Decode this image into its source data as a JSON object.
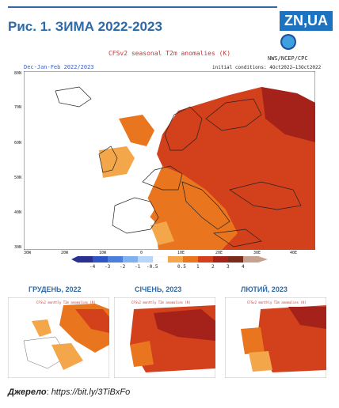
{
  "title": "Рис. 1. ЗИМА 2022-2023",
  "logo": "ZN,UA",
  "figure": {
    "heading": "CFSv2 seasonal T2m anomalies (K)",
    "agency": "NWS/NCEP/CPC",
    "period": "Dec-Jan-Feb 2022/2023",
    "initial_conditions": "initial conditions: 4Oct2022–13Oct2022",
    "lat_labels": [
      "80N",
      "70N",
      "60N",
      "50N",
      "40N",
      "30N"
    ],
    "lon_labels": [
      "30W",
      "20W",
      "10W",
      "0",
      "10E",
      "20E",
      "30E",
      "40E"
    ],
    "colorbar_ticks": [
      "-4",
      "-3",
      "-2",
      "-1",
      "-0.5",
      "0.5",
      "1",
      "2",
      "3",
      "4"
    ],
    "colorbar_colors": [
      "#2b2f8f",
      "#2f55c4",
      "#4a7fdc",
      "#7fb0ef",
      "#b8d6f7",
      "#ffffff",
      "#f3a64a",
      "#e9751f",
      "#d2401c",
      "#a5221a",
      "#7a2a1a",
      "#c8a290"
    ]
  },
  "months": [
    {
      "label": "ГРУДЕНЬ, 2022",
      "caption": "CFSv2 monthly T2m anomalies (K)"
    },
    {
      "label": "СІЧЕНЬ, 2023",
      "caption": "CFSv2 monthly T2m anomalies (K)"
    },
    {
      "label": "ЛЮТИЙ, 2023",
      "caption": "CFSv2 monthly T2m anomalies (K)"
    }
  ],
  "source": {
    "label": "Джерело",
    "url": "https://bit.ly/3TiBxFo"
  },
  "colors": {
    "accent": "#2f6aa8",
    "logo_bg": "#1e73c0",
    "anomaly_hot": "#d2401c",
    "anomaly_warm": "#e9751f",
    "anomaly_mild": "#f3a64a",
    "anomaly_extreme": "#a5221a"
  }
}
